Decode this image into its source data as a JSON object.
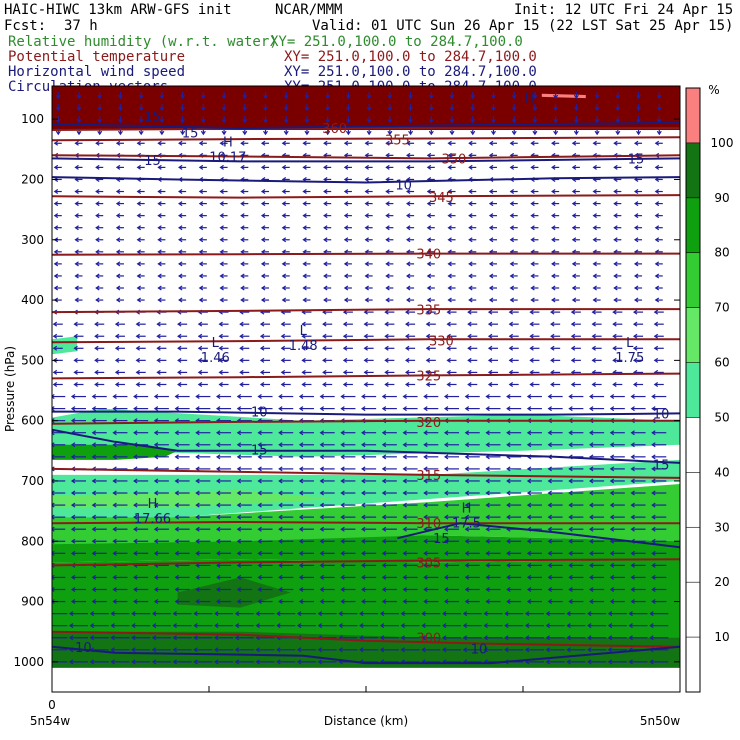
{
  "header": {
    "model": "HAIC-HIWC 13km ARW-GFS init",
    "center": "NCAR/MMM",
    "init": "Init: 12 UTC Fri 24 Apr 15",
    "fcst_label": "Fcst:",
    "fcst_value": "37 h",
    "valid": "Valid: 01 UTC Sun 26 Apr 15 (22 LST Sat 25 Apr 15)",
    "fields": [
      {
        "name": "Relative humidity (w.r.t. water)",
        "xy": "XY= 251.0,100.0 to 284.7,100.0",
        "color": "#2e8b2e"
      },
      {
        "name": "Potential temperature",
        "xy": "XY= 251.0,100.0 to 284.7,100.0",
        "color": "#8b1a1a"
      },
      {
        "name": "Horizontal wind speed",
        "xy": "XY= 251.0,100.0 to 284.7,100.0",
        "color": "#1a1a7a"
      },
      {
        "name": "Circulation vectors",
        "xy": "XY= 251.0,100.0 to 284.7,100.0",
        "color": "#1a1a7a"
      }
    ]
  },
  "colors": {
    "rh_fill": [
      "#ffffff",
      "#ffffff",
      "#ffffff",
      "#ffffff",
      "#ffffff",
      "#4ee89a",
      "#65e865",
      "#33cc33",
      "#0ea00e",
      "#127412",
      "#fa8080"
    ],
    "theta_line": "#8b1a1a",
    "wind_line": "#1a1a7a",
    "vector": "#2020a0"
  },
  "chart_data": {
    "type": "heatmap",
    "ylabel": "Pressure (hPa)",
    "xlabel": "Distance (km)",
    "x_start_label": "5n54w",
    "x_end_label": "5n50w",
    "x_tick_value": "0",
    "y_ticks": [
      100,
      200,
      300,
      400,
      500,
      600,
      700,
      800,
      900,
      1000
    ],
    "ylim": [
      1050,
      45
    ],
    "x_ticks": [
      0,
      0.25,
      0.5,
      0.75,
      1.0
    ],
    "colorbar": {
      "unit": "%",
      "ticks": [
        10,
        20,
        30,
        40,
        50,
        60,
        70,
        80,
        90,
        100
      ],
      "bounds": [
        0,
        10,
        20,
        30,
        40,
        50,
        60,
        70,
        80,
        90,
        100,
        110
      ]
    },
    "rh_regions": [
      {
        "level": "50-60",
        "pts": [
          [
            0,
            595
          ],
          [
            0.08,
            580
          ],
          [
            0.4,
            600
          ],
          [
            0.75,
            590
          ],
          [
            1,
            600
          ],
          [
            1,
            640
          ],
          [
            0.75,
            650
          ],
          [
            0.4,
            660
          ],
          [
            0.1,
            650
          ],
          [
            0,
            650
          ]
        ]
      },
      {
        "level": "50-60",
        "pts": [
          [
            0,
            465
          ],
          [
            0.04,
            460
          ],
          [
            0.04,
            485
          ],
          [
            0,
            490
          ]
        ]
      },
      {
        "level": "50-60",
        "pts": [
          [
            0,
            690
          ],
          [
            0.2,
            690
          ],
          [
            0.6,
            690
          ],
          [
            1,
            665
          ],
          [
            1,
            700
          ],
          [
            0.6,
            730
          ],
          [
            0.2,
            760
          ],
          [
            0,
            760
          ]
        ]
      },
      {
        "level": "80-90",
        "pts": [
          [
            0,
            640
          ],
          [
            0.15,
            640
          ],
          [
            0.2,
            650
          ],
          [
            0.18,
            660
          ],
          [
            0.1,
            665
          ],
          [
            0,
            665
          ]
        ]
      },
      {
        "level": "70-80",
        "pts": [
          [
            0,
            760
          ],
          [
            0.2,
            760
          ],
          [
            0.6,
            735
          ],
          [
            1,
            705
          ],
          [
            1,
            800
          ],
          [
            0.6,
            790
          ],
          [
            0.3,
            805
          ],
          [
            0,
            810
          ]
        ]
      },
      {
        "level": "60-70",
        "pts": [
          [
            0,
            725
          ],
          [
            0.3,
            715
          ],
          [
            0.45,
            730
          ],
          [
            0.2,
            745
          ],
          [
            0,
            745
          ]
        ]
      },
      {
        "level": "80-90",
        "pts": [
          [
            0,
            805
          ],
          [
            0.3,
            800
          ],
          [
            0.6,
            790
          ],
          [
            1,
            800
          ],
          [
            1,
            830
          ],
          [
            0.6,
            835
          ],
          [
            0.3,
            830
          ],
          [
            0,
            835
          ]
        ]
      },
      {
        "level": "80-90",
        "pts": [
          [
            0,
            835
          ],
          [
            0.3,
            830
          ],
          [
            0.6,
            835
          ],
          [
            1,
            830
          ],
          [
            1,
            1010
          ],
          [
            0,
            1010
          ]
        ]
      },
      {
        "level": "90-100",
        "pts": [
          [
            0,
            950
          ],
          [
            0.3,
            950
          ],
          [
            0.6,
            960
          ],
          [
            1,
            960
          ],
          [
            1,
            1010
          ],
          [
            0,
            1010
          ]
        ]
      },
      {
        "level": "90-100",
        "pts": [
          [
            0.2,
            885
          ],
          [
            0.3,
            860
          ],
          [
            0.38,
            885
          ],
          [
            0.3,
            910
          ],
          [
            0.2,
            905
          ]
        ]
      },
      {
        "level": "90-100",
        "pts": [
          [
            0,
            55
          ],
          [
            1,
            55
          ],
          [
            1,
            115
          ],
          [
            0.6,
            118
          ],
          [
            0.2,
            112
          ],
          [
            0,
            118
          ]
        ]
      },
      {
        "level": "100+",
        "pts": [
          [
            0.78,
            58
          ],
          [
            0.85,
            60
          ],
          [
            0.85,
            65
          ],
          [
            0.78,
            63
          ]
        ]
      }
    ],
    "theta_contours": [
      {
        "value": 300,
        "pts": [
          [
            0,
            950
          ],
          [
            0.3,
            955
          ],
          [
            0.5,
            965
          ],
          [
            0.7,
            970
          ],
          [
            1,
            975
          ]
        ]
      },
      {
        "value": 305,
        "pts": [
          [
            0,
            840
          ],
          [
            0.3,
            835
          ],
          [
            0.6,
            832
          ],
          [
            1,
            830
          ]
        ]
      },
      {
        "value": 310,
        "pts": [
          [
            0,
            770
          ],
          [
            0.3,
            768
          ],
          [
            0.6,
            770
          ],
          [
            1,
            770
          ]
        ]
      },
      {
        "value": 315,
        "pts": [
          [
            0,
            680
          ],
          [
            0.3,
            685
          ],
          [
            0.6,
            690
          ],
          [
            1,
            695
          ]
        ]
      },
      {
        "value": 320,
        "pts": [
          [
            0,
            605
          ],
          [
            0.3,
            602
          ],
          [
            0.6,
            600
          ],
          [
            1,
            600
          ]
        ]
      },
      {
        "value": 325,
        "pts": [
          [
            0,
            530
          ],
          [
            0.3,
            528
          ],
          [
            0.6,
            525
          ],
          [
            1,
            522
          ]
        ]
      },
      {
        "value": 330,
        "pts": [
          [
            0,
            470
          ],
          [
            0.3,
            468
          ],
          [
            0.6,
            465
          ],
          [
            1,
            465
          ]
        ]
      },
      {
        "value": 335,
        "pts": [
          [
            0,
            420
          ],
          [
            0.3,
            418
          ],
          [
            0.6,
            415
          ],
          [
            1,
            415
          ]
        ]
      },
      {
        "value": 340,
        "pts": [
          [
            0,
            325
          ],
          [
            0.3,
            324
          ],
          [
            0.6,
            323
          ],
          [
            1,
            323
          ]
        ]
      },
      {
        "value": 345,
        "pts": [
          [
            0,
            228
          ],
          [
            0.3,
            230
          ],
          [
            0.6,
            228
          ],
          [
            1,
            226
          ]
        ]
      },
      {
        "value": 350,
        "pts": [
          [
            0,
            160
          ],
          [
            0.3,
            162
          ],
          [
            0.6,
            165
          ],
          [
            1,
            160
          ]
        ]
      },
      {
        "value": 355,
        "pts": [
          [
            0,
            135
          ],
          [
            0.3,
            133
          ],
          [
            0.6,
            132
          ],
          [
            1,
            130
          ]
        ]
      },
      {
        "value": 360,
        "pts": [
          [
            0,
            118
          ],
          [
            0.3,
            116
          ],
          [
            0.6,
            115
          ],
          [
            1,
            115
          ]
        ]
      }
    ],
    "theta_labels": [
      {
        "value": "300",
        "x": 0.6,
        "p": 960
      },
      {
        "value": "305",
        "x": 0.6,
        "p": 835
      },
      {
        "value": "310",
        "x": 0.6,
        "p": 770
      },
      {
        "value": "315",
        "x": 0.6,
        "p": 690
      },
      {
        "value": "320",
        "x": 0.6,
        "p": 602
      },
      {
        "value": "325",
        "x": 0.6,
        "p": 525
      },
      {
        "value": "330",
        "x": 0.62,
        "p": 467
      },
      {
        "value": "335",
        "x": 0.6,
        "p": 416
      },
      {
        "value": "340",
        "x": 0.6,
        "p": 323
      },
      {
        "value": "345",
        "x": 0.62,
        "p": 229
      },
      {
        "value": "350",
        "x": 0.64,
        "p": 165
      },
      {
        "value": "355",
        "x": 0.55,
        "p": 134
      },
      {
        "value": "360",
        "x": 0.45,
        "p": 115
      }
    ],
    "wind_contours": [
      {
        "value": 10,
        "pts": [
          [
            0,
            975
          ],
          [
            0.1,
            985
          ],
          [
            0.3,
            988
          ],
          [
            0.4,
            990
          ],
          [
            0.5,
            1002
          ],
          [
            0.7,
            1002
          ],
          [
            1,
            975
          ]
        ]
      },
      {
        "value": 10,
        "pts": [
          [
            0,
            585
          ],
          [
            0.2,
            585
          ],
          [
            0.5,
            590
          ],
          [
            0.8,
            590
          ],
          [
            1,
            588
          ]
        ]
      },
      {
        "value": 15,
        "pts": [
          [
            0,
            615
          ],
          [
            0.1,
            635
          ],
          [
            0.2,
            650
          ],
          [
            0.5,
            650
          ],
          [
            0.8,
            660
          ],
          [
            1,
            670
          ]
        ]
      },
      {
        "value": 15,
        "pts": [
          [
            0.55,
            795
          ],
          [
            0.65,
            770
          ],
          [
            0.8,
            785
          ],
          [
            1,
            810
          ]
        ]
      },
      {
        "value": 10,
        "pts": [
          [
            0,
            196
          ],
          [
            0.2,
            200
          ],
          [
            0.5,
            205
          ],
          [
            0.8,
            198
          ],
          [
            1,
            196
          ]
        ]
      },
      {
        "value": 15,
        "pts": [
          [
            0,
            165
          ],
          [
            0.3,
            170
          ],
          [
            0.6,
            170
          ],
          [
            1,
            165
          ]
        ]
      },
      {
        "value": 15,
        "pts": [
          [
            0,
            108
          ],
          [
            0.3,
            115
          ],
          [
            0.5,
            112
          ],
          [
            0.8,
            108
          ],
          [
            1,
            106
          ]
        ]
      }
    ],
    "wind_labels": [
      {
        "value": "10",
        "x": 0.33,
        "p": 585
      },
      {
        "value": "10",
        "x": 0.97,
        "p": 588
      },
      {
        "value": "15",
        "x": 0.33,
        "p": 648
      },
      {
        "value": "15",
        "x": 0.97,
        "p": 673
      },
      {
        "value": "15",
        "x": 0.62,
        "p": 795
      },
      {
        "value": "10",
        "x": 0.05,
        "p": 975
      },
      {
        "value": "10",
        "x": 0.68,
        "p": 978
      },
      {
        "value": "10",
        "x": 0.56,
        "p": 208
      },
      {
        "value": "15",
        "x": 0.16,
        "p": 168
      },
      {
        "value": "15",
        "x": 0.93,
        "p": 165
      },
      {
        "value": "15",
        "x": 0.22,
        "p": 122
      },
      {
        "value": "15",
        "x": 0.16,
        "p": 95
      }
    ],
    "extrema": [
      {
        "sym": "H",
        "value": "10.17",
        "x": 0.28,
        "p": 145
      },
      {
        "sym": "L",
        "value": "1.46",
        "x": 0.26,
        "p": 478
      },
      {
        "sym": "L",
        "value": "1.48",
        "x": 0.4,
        "p": 458
      },
      {
        "sym": "L",
        "value": "1.75",
        "x": 0.92,
        "p": 478
      },
      {
        "sym": "H",
        "value": "17.66",
        "x": 0.16,
        "p": 745
      },
      {
        "sym": "H",
        "value": "17.5",
        "x": 0.66,
        "p": 752
      },
      {
        "sym": "H",
        "value": "",
        "x": 0.76,
        "p": 72
      }
    ]
  }
}
